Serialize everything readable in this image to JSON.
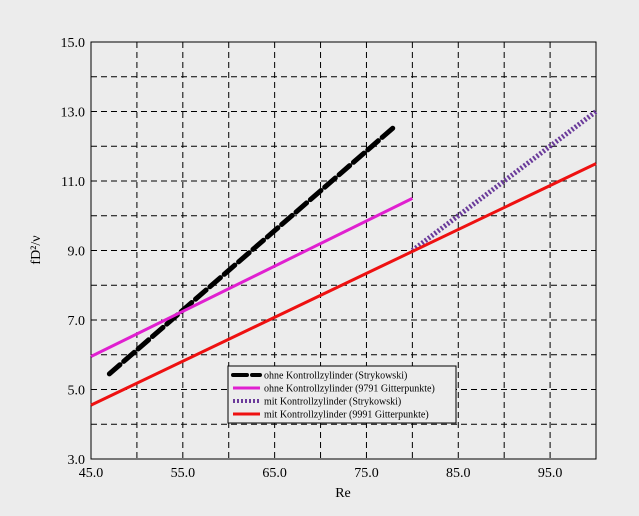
{
  "chart_data": {
    "type": "line",
    "xlabel": "Re",
    "ylabel": "fD²/ν",
    "xlim": [
      45.0,
      100.0
    ],
    "ylim": [
      3.0,
      15.0
    ],
    "x_ticks": [
      45.0,
      55.0,
      65.0,
      75.0,
      85.0,
      95.0
    ],
    "y_ticks": [
      3.0,
      5.0,
      7.0,
      9.0,
      11.0,
      13.0,
      15.0
    ],
    "x_tick_labels": [
      "45.0",
      "55.0",
      "65.0",
      "75.0",
      "85.0",
      "95.0"
    ],
    "y_tick_labels": [
      "3.0",
      "5.0",
      "7.0",
      "9.0",
      "11.0",
      "13.0",
      "15.0"
    ],
    "grid": true,
    "grid_style": "dashed",
    "legend_position": "bottom-center",
    "series": [
      {
        "name": "ohne Kontrollzylinder   (Strykowski)",
        "color": "#000000",
        "style": "dashed-thick",
        "x": [
          47,
          78
        ],
        "y": [
          5.45,
          12.55
        ]
      },
      {
        "name": "ohne Kontrollzylinder (9791 Gitterpunkte)",
        "color": "#e020d0",
        "style": "solid",
        "x": [
          45,
          80
        ],
        "y": [
          5.95,
          10.5
        ]
      },
      {
        "name": "mit Kontrollzylinder (Strykowski)",
        "color": "#6a3a9a",
        "style": "dotted-thick",
        "x": [
          80,
          100
        ],
        "y": [
          9.0,
          13.0
        ]
      },
      {
        "name": "mit Kontrollzylinder  (9991 Gitterpunkte)",
        "color": "#ee1111",
        "style": "solid",
        "x": [
          45,
          100
        ],
        "y": [
          4.55,
          11.5
        ]
      }
    ]
  }
}
